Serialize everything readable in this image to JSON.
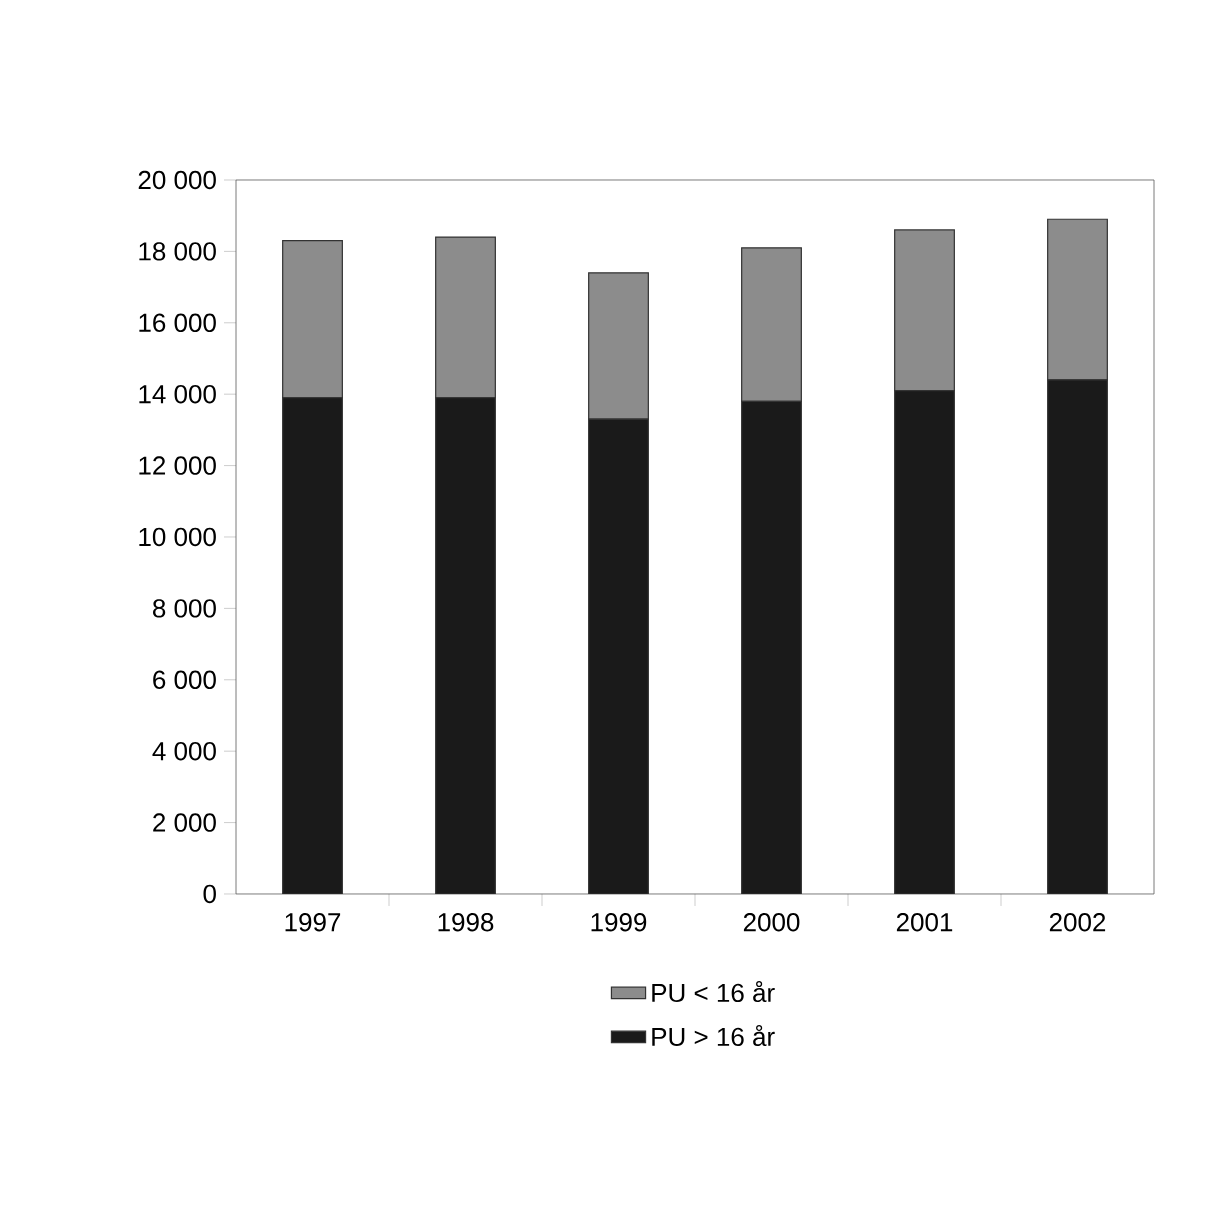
{
  "chart_data": {
    "type": "bar",
    "stacked": true,
    "categories": [
      "1997",
      "1998",
      "1999",
      "2000",
      "2001",
      "2002"
    ],
    "series": [
      {
        "name": "PU > 16 år",
        "color": "#1a1a1a",
        "values": [
          13900,
          13900,
          13300,
          13800,
          14100,
          14400
        ]
      },
      {
        "name": "PU < 16 år",
        "color": "#8c8c8c",
        "values": [
          4400,
          4500,
          4100,
          4300,
          4500,
          4500
        ]
      }
    ],
    "ylim": [
      0,
      20000
    ],
    "yticks": [
      0,
      {
        "value": 2000,
        "label": "2 000"
      },
      {
        "value": 4000,
        "label": "4 000"
      },
      {
        "value": 6000,
        "label": "6 000"
      },
      {
        "value": 8000,
        "label": "8 000"
      },
      {
        "value": 10000,
        "label": "10 000"
      },
      {
        "value": 12000,
        "label": "12 000"
      },
      {
        "value": 14000,
        "label": "14 000"
      },
      {
        "value": 16000,
        "label": "16 000"
      },
      {
        "value": 18000,
        "label": "18 000"
      },
      {
        "value": 20000,
        "label": "20 000"
      }
    ],
    "legend": "bottom",
    "grid": false
  }
}
